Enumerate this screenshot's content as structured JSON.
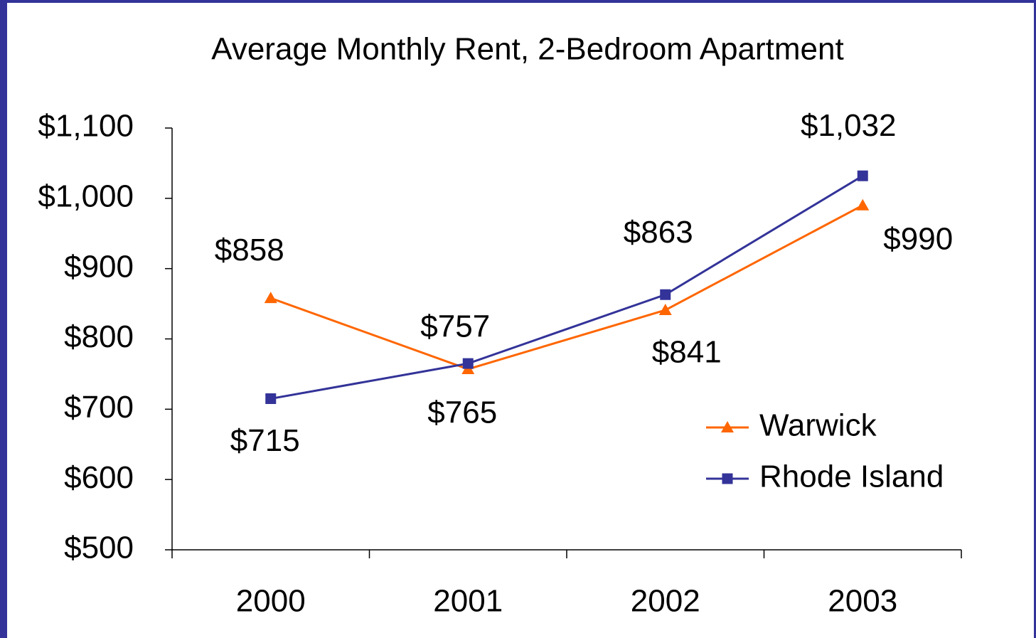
{
  "chart_data": {
    "type": "line",
    "title": "Average Monthly Rent, 2-Bedroom Apartment",
    "categories": [
      "2000",
      "2001",
      "2002",
      "2003"
    ],
    "series": [
      {
        "name": "Warwick",
        "color": "#ff6600",
        "marker": "triangle",
        "values": [
          858,
          757,
          841,
          990
        ],
        "value_labels": [
          "$858",
          "$757",
          "$841",
          "$990"
        ]
      },
      {
        "name": "Rhode Island",
        "color": "#333399",
        "marker": "square",
        "values": [
          715,
          765,
          863,
          1032
        ],
        "value_labels": [
          "$715",
          "$765",
          "$863",
          "$1,032"
        ]
      }
    ],
    "ylim": [
      500,
      1100
    ],
    "yticks": [
      {
        "value": 500,
        "label": "$500"
      },
      {
        "value": 600,
        "label": "$600"
      },
      {
        "value": 700,
        "label": "$700"
      },
      {
        "value": 800,
        "label": "$800"
      },
      {
        "value": 900,
        "label": "$900"
      },
      {
        "value": 1000,
        "label": "$1,000"
      },
      {
        "value": 1100,
        "label": "$1,100"
      }
    ],
    "grid": false,
    "legend": "lower right"
  }
}
